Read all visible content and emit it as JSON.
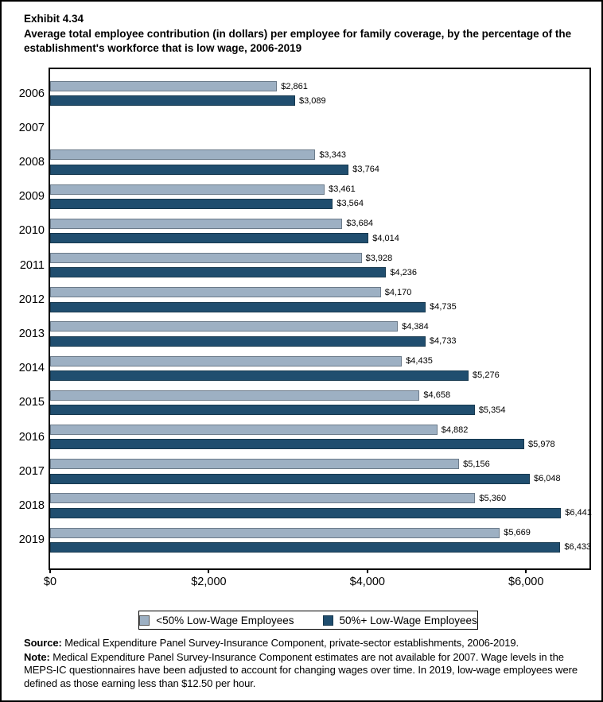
{
  "header": {
    "exhibit": "Exhibit 4.34",
    "title": "Average total employee contribution (in dollars) per employee for family coverage, by the percentage of the establishment's workforce that is low wage, 2006-2019"
  },
  "chart_data": {
    "type": "bar",
    "orientation": "horizontal",
    "title": "Average total employee contribution (in dollars) per employee for family coverage, by the percentage of the establishment's workforce that is low wage, 2006-2019",
    "categories": [
      "2006",
      "2007",
      "2008",
      "2009",
      "2010",
      "2011",
      "2012",
      "2013",
      "2014",
      "2015",
      "2016",
      "2017",
      "2018",
      "2019"
    ],
    "series": [
      {
        "name": "<50% Low-Wage Employees",
        "color": "#9DB0C3",
        "values": [
          2861,
          null,
          3343,
          3461,
          3684,
          3928,
          4170,
          4384,
          4435,
          4658,
          4882,
          5156,
          5360,
          5669
        ],
        "labels": [
          "$2,861",
          null,
          "$3,343",
          "$3,461",
          "$3,684",
          "$3,928",
          "$4,170",
          "$4,384",
          "$4,435",
          "$4,658",
          "$4,882",
          "$5,156",
          "$5,360",
          "$5,669"
        ]
      },
      {
        "name": "50%+ Low-Wage Employees",
        "color": "#204E6F",
        "values": [
          3089,
          null,
          3764,
          3564,
          4014,
          4236,
          4735,
          4733,
          5276,
          5354,
          5978,
          6048,
          6441,
          6433
        ],
        "labels": [
          "$3,089",
          null,
          "$3,764",
          "$3,564",
          "$4,014",
          "$4,236",
          "$4,735",
          "$4,733",
          "$5,276",
          "$5,354",
          "$5,978",
          "$6,048",
          "$6,441",
          "$6,433"
        ]
      }
    ],
    "x_ticks": [
      {
        "value": 0,
        "label": "$0"
      },
      {
        "value": 2000,
        "label": "$2,000"
      },
      {
        "value": 4000,
        "label": "$4,000"
      },
      {
        "value": 6000,
        "label": "$6,000"
      }
    ],
    "xlim": [
      0,
      6800
    ],
    "grid": false,
    "legend_position": "bottom",
    "note": "No data shown for 2007"
  },
  "legend": {
    "items": [
      {
        "label": "<50% Low-Wage Employees",
        "color": "#9DB0C3"
      },
      {
        "label": "50%+ Low-Wage Employees",
        "color": "#204E6F"
      }
    ]
  },
  "footer": {
    "source_label": "Source:",
    "source_text": "Medical Expenditure Panel Survey-Insurance Component, private-sector establishments, 2006-2019.",
    "note_label": "Note:",
    "note_text": "Medical Expenditure Panel Survey-Insurance Component estimates are not available for 2007. Wage levels in the MEPS-IC questionnaires have been adjusted to account for changing wages over time. In 2019, low-wage employees were defined as those earning less than $12.50 per hour."
  }
}
